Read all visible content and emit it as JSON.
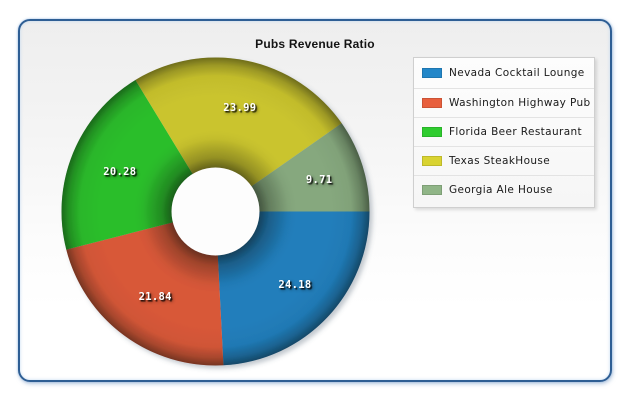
{
  "window": {
    "background_color": "#ffffff",
    "panel_border_color": "#2e5e94"
  },
  "chart_data": {
    "type": "pie",
    "subtype": "donut",
    "title": "Pubs Revenue Ratio",
    "start_angle_deg": 0,
    "direction": "clockwise",
    "legend_position": "right",
    "series": [
      {
        "label": "Nevada Cocktail Lounge",
        "value": 24.18,
        "color": "#2387c9"
      },
      {
        "label": "Washington Highway Pub",
        "value": 21.84,
        "color": "#e85f3d"
      },
      {
        "label": "Florida Beer Restaurant",
        "value": 20.28,
        "color": "#2fcc2f"
      },
      {
        "label": "Texas SteakHouse",
        "value": 23.99,
        "color": "#d9d331"
      },
      {
        "label": "Georgia Ale House",
        "value": 9.71,
        "color": "#90b587"
      }
    ],
    "value_labels": [
      "24.18",
      "21.84",
      "20.28",
      "23.99",
      "9.71"
    ],
    "label_color": "#ffffff"
  }
}
